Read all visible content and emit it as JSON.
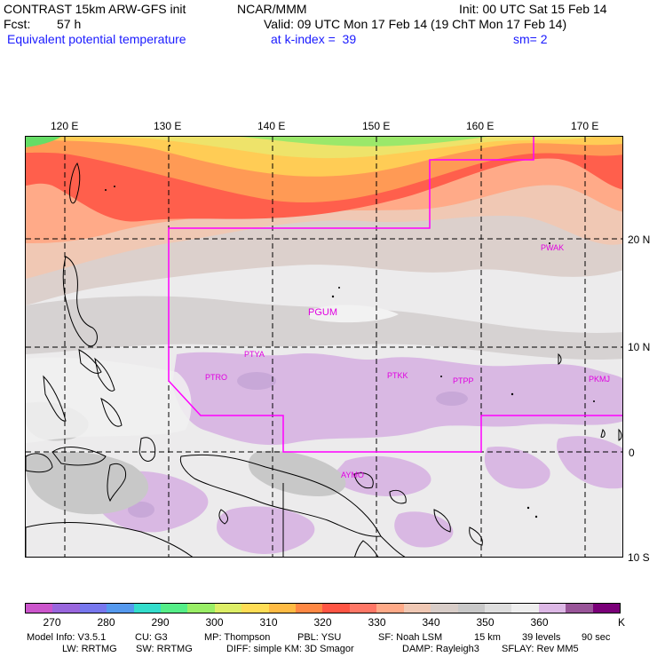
{
  "header": {
    "title_left": "CONTRAST 15km ARW-GFS init",
    "title_mid": "NCAR/MMM",
    "init": "Init: 00 UTC Sat 15 Feb 14",
    "fcst_label": "Fcst:",
    "fcst_value": "57 h",
    "valid": "Valid: 09 UTC Mon 17 Feb 14 (19 ChT Mon 17 Feb 14)",
    "field": "Equivalent potential temperature",
    "level": "at k-index =  39",
    "smoothing": "sm= 2"
  },
  "map": {
    "lon_labels": [
      "120 E",
      "130 E",
      "140 E",
      "150 E",
      "160 E",
      "170 E"
    ],
    "lat_labels": [
      "20 N",
      "10 N",
      "0",
      "10 S"
    ],
    "stations": [
      "PWAK",
      "PGUM",
      "PTYA",
      "PTRO",
      "PTKK",
      "PTPP",
      "PKMJ",
      "AYMO"
    ],
    "boundary_color": "#ff00ff",
    "station_color": "#e000e0"
  },
  "colorbar": {
    "colors": [
      "#cc55cc",
      "#9966dd",
      "#7777ee",
      "#5599ee",
      "#33ddcc",
      "#55ee88",
      "#99ee66",
      "#ddee66",
      "#ffdd55",
      "#ffbb44",
      "#ff8844",
      "#ff5544",
      "#ff7766",
      "#ffaa88",
      "#f0c8b4",
      "#d8cdc8",
      "#c8c8c8",
      "#dedede",
      "#eeeeee",
      "#ddb8e6",
      "#995599",
      "#7a0078"
    ],
    "ticks": [
      "270",
      "280",
      "290",
      "300",
      "310",
      "320",
      "330",
      "340",
      "350",
      "360"
    ],
    "unit": "K"
  },
  "footer": {
    "line1": [
      "Model Info: V3.5.1",
      "CU: G3",
      "MP: Thompson",
      "PBL: YSU",
      "SF: Noah LSM",
      "15 km",
      "39 levels",
      "90 sec"
    ],
    "line2": [
      "LW: RRTMG",
      "SW: RRTMG",
      "DIFF: simple KM: 3D Smagor",
      "DAMP: Rayleigh3",
      "SFLAY: Rev MM5"
    ]
  }
}
